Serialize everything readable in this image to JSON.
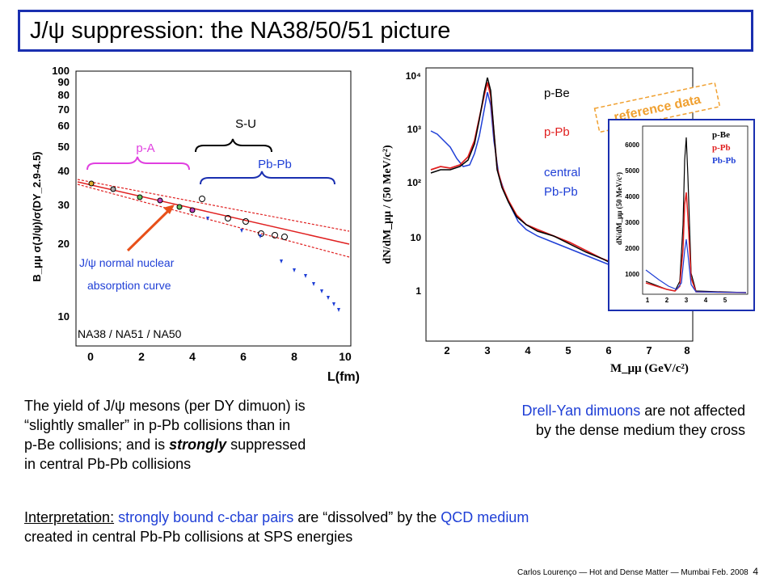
{
  "slide": {
    "title": "J/ψ suppression: the NA38/50/51 picture",
    "footer": "Carlos Lourenço — Hot and Dense Matter — Mumbai Feb. 2008",
    "page_number": "4"
  },
  "left_plot": {
    "ylabel": "B_μμ σ(J/ψ)/σ(DY_2.9-4.5)",
    "xlabel": "L(fm)",
    "x_ticks": [
      "0",
      "2",
      "4",
      "6",
      "8",
      "10"
    ],
    "y_ticks": [
      "100",
      "90",
      "80",
      "70",
      "60",
      "50",
      "40",
      "30",
      "20",
      "10"
    ],
    "bracket_pa": "p-A",
    "bracket_su": "S-U",
    "bracket_pbpb": "Pb-Pb",
    "annotation_line1": "J/ψ normal nuclear",
    "annotation_line2": "absorption curve",
    "experiments": "NA38 / NA51 / NA50"
  },
  "right_plot": {
    "ylabel": "dN/dM_μμ / (50 MeV/c²)",
    "xlabel": "M_μμ (GeV/c²)",
    "x_ticks": [
      "2",
      "3",
      "4",
      "5",
      "6",
      "7",
      "8"
    ],
    "y_ticks": [
      "10⁴",
      "10³",
      "10²",
      "10",
      "1"
    ],
    "legend_pbe": "p-Be",
    "legend_ppb": "p-Pb",
    "legend_central": "central",
    "legend_pbpb": "Pb-Pb",
    "reference_label": "reference data",
    "inset": {
      "ylabel": "dN/dM_μμ (50 MeV/c²)",
      "y_ticks": [
        "6000",
        "5000",
        "4000",
        "3000",
        "2000",
        "1000"
      ],
      "x_ticks": [
        "1",
        "2",
        "3",
        "4",
        "5"
      ],
      "legend_pbe": "p-Be",
      "legend_ppb": "p-Pb",
      "legend_pbpb": "Pb-Pb"
    }
  },
  "text": {
    "left_para": [
      "The yield of J/ψ mesons (per DY dimuon) is",
      "“slightly smaller” in p-Pb collisions than in",
      "p-Be collisions; and is",
      "strongly",
      "suppressed",
      "in central Pb-Pb collisions"
    ],
    "right_para_blue": "Drell-Yan dimuons",
    "right_para_rest1": " are not affected",
    "right_para_line2": "by the dense medium they cross",
    "interp_label": "Interpretation:",
    "interp_blue1": "strongly bound c-cbar pairs",
    "interp_mid": " are “dissolved” by the ",
    "interp_blue2": "QCD medium",
    "interp_line2": "created in central Pb-Pb collisions at SPS energies"
  },
  "colors": {
    "title_border": "#1a2fb0",
    "accent_blue": "#1f3fd6",
    "pA_magenta": "#e040e0",
    "arrow_orange": "#e8501a",
    "reference_orange": "#f0a030",
    "curve_red": "#e02020"
  }
}
